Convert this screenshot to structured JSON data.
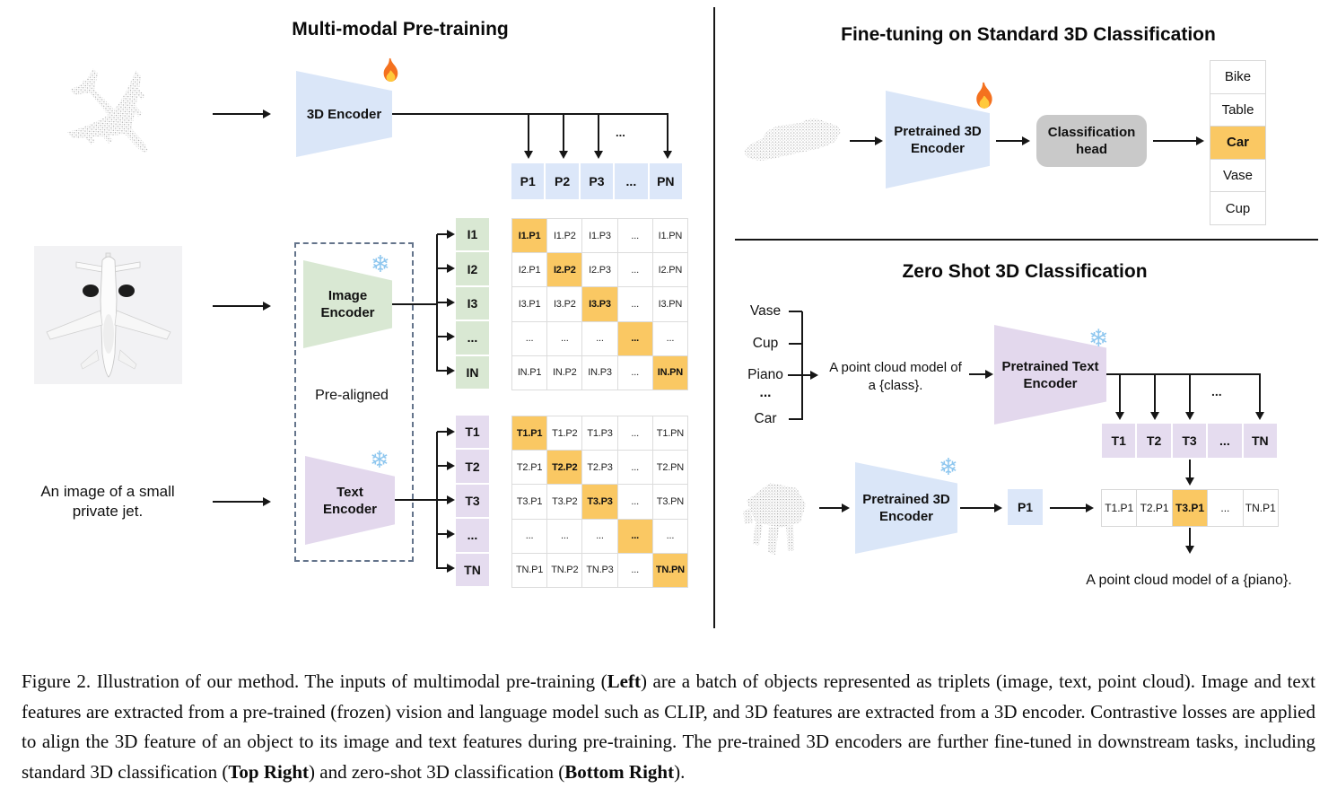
{
  "left": {
    "title": "Multi-modal Pre-training",
    "encoder_3d": "3D Encoder",
    "image_encoder": "Image\nEncoder",
    "text_encoder": "Text\nEncoder",
    "pre_aligned": "Pre-aligned",
    "input_caption": "An image of a small\nprivate jet.",
    "ellipsis": "...",
    "p_row": [
      "P1",
      "P2",
      "P3",
      "...",
      "PN"
    ],
    "i_labels": [
      "I1",
      "I2",
      "I3",
      "...",
      "IN"
    ],
    "i_matrix": [
      [
        "I1.P1",
        "I1.P2",
        "I1.P3",
        "...",
        "I1.PN"
      ],
      [
        "I2.P1",
        "I2.P2",
        "I2.P3",
        "...",
        "I2.PN"
      ],
      [
        "I3.P1",
        "I3.P2",
        "I3.P3",
        "...",
        "I3.PN"
      ],
      [
        "...",
        "...",
        "...",
        "...",
        "..."
      ],
      [
        "IN.P1",
        "IN.P2",
        "IN.P3",
        "...",
        "IN.PN"
      ]
    ],
    "t_labels": [
      "T1",
      "T2",
      "T3",
      "...",
      "TN"
    ],
    "t_matrix": [
      [
        "T1.P1",
        "T1.P2",
        "T1.P3",
        "...",
        "T1.PN"
      ],
      [
        "T2.P1",
        "T2.P2",
        "T2.P3",
        "...",
        "T2.PN"
      ],
      [
        "T3.P1",
        "T3.P2",
        "T3.P3",
        "...",
        "T3.PN"
      ],
      [
        "...",
        "...",
        "...",
        "...",
        "..."
      ],
      [
        "TN.P1",
        "TN.P2",
        "TN.P3",
        "...",
        "TN.PN"
      ]
    ]
  },
  "top_right": {
    "title": "Fine-tuning on Standard 3D Classification",
    "encoder": "Pretrained 3D\nEncoder",
    "head": "Classification\nhead",
    "classes": [
      "Bike",
      "Table",
      "Car",
      "Vase",
      "Cup"
    ],
    "highlight_index": 2
  },
  "bottom_right": {
    "title": "Zero Shot 3D Classification",
    "class_list": [
      "Vase",
      "Cup",
      "Piano",
      "...",
      "Car"
    ],
    "prompt": "A point cloud model of\na {class}.",
    "text_encoder": "Pretrained Text\nEncoder",
    "encoder_3d": "Pretrained 3D\nEncoder",
    "p1": "P1",
    "t_row": [
      "T1",
      "T2",
      "T3",
      "...",
      "TN"
    ],
    "result_row": [
      "T1.P1",
      "T2.P1",
      "T3.P1",
      "...",
      "TN.P1"
    ],
    "result_highlight_index": 2,
    "result_text": "A point cloud model of a {piano}.",
    "ellipsis": "..."
  },
  "caption": {
    "segments": [
      {
        "text": "Figure 2. Illustration of our method.  The inputs of multimodal pre-training ("
      },
      {
        "text": "Left",
        "bold": true
      },
      {
        "text": ") are a batch of objects represented as triplets (image, text, point cloud).  Image and text features are extracted from a pre-trained (frozen) vision and language model such as CLIP, and 3D features are extracted from a 3D encoder.  Contrastive losses are applied to align the 3D feature of an object to its image and text features during pre-training.  The pre-trained 3D encoders are further fine-tuned in downstream tasks, including standard 3D classification ("
      },
      {
        "text": "Top Right",
        "bold": true
      },
      {
        "text": ") and zero-shot 3D classification ("
      },
      {
        "text": "Bottom Right",
        "bold": true
      },
      {
        "text": ")."
      }
    ]
  },
  "icons": {
    "flame": "flame-icon",
    "snowflake": "snowflake-icon",
    "snowflake_glyph": "❄"
  },
  "colors": {
    "encoder_blue": "#DAE6F8",
    "encoder_green": "#D9E8D3",
    "encoder_purple": "#E3D8ED",
    "box_blue": "#DCE7F9",
    "box_green": "#D9E8D3",
    "box_purple": "#E5DCEF",
    "highlight_orange": "#FAC863",
    "head_gray": "#C9C9C9"
  }
}
